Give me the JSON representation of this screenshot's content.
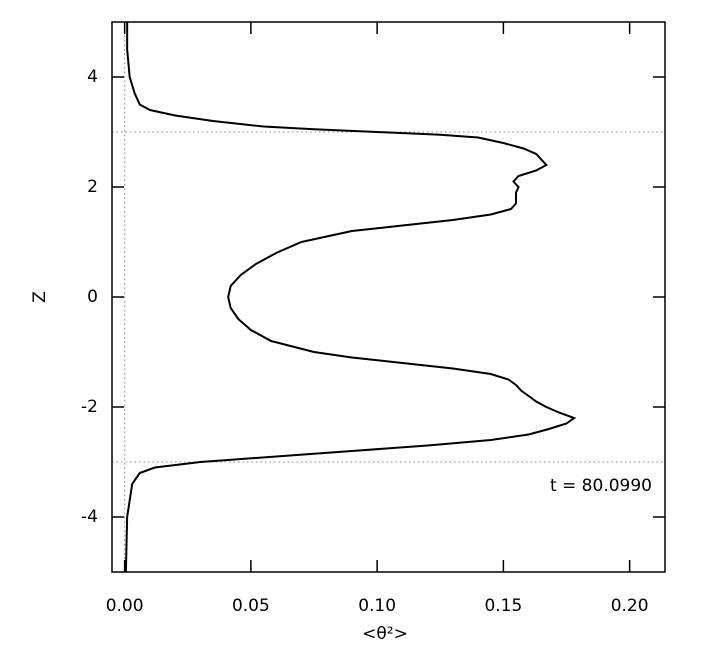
{
  "chart_data": {
    "type": "line",
    "xlabel": "<θ²>",
    "ylabel": "Z",
    "annotation": "t = 80.0990",
    "xlim": [
      -0.005,
      0.214
    ],
    "ylim": [
      -5,
      5
    ],
    "xticks": [
      {
        "value": 0,
        "label": "0.00"
      },
      {
        "value": 0.05,
        "label": "0.05"
      },
      {
        "value": 0.1,
        "label": "0.10"
      },
      {
        "value": 0.15,
        "label": "0.15"
      },
      {
        "value": 0.2,
        "label": "0.20"
      }
    ],
    "yticks": [
      -4,
      -2,
      0,
      2,
      4
    ],
    "hlines": [
      3,
      -3
    ],
    "vlines": [
      0
    ],
    "color": "#000000",
    "z": [
      5,
      4.5,
      4,
      3.7,
      3.5,
      3.4,
      3.3,
      3.2,
      3.1,
      3.05,
      3.0,
      2.95,
      2.9,
      2.8,
      2.7,
      2.6,
      2.5,
      2.4,
      2.3,
      2.2,
      2.1,
      2.0,
      1.9,
      1.8,
      1.7,
      1.6,
      1.5,
      1.4,
      1.3,
      1.2,
      1.0,
      0.8,
      0.6,
      0.4,
      0.2,
      0,
      -0.2,
      -0.4,
      -0.6,
      -0.8,
      -1.0,
      -1.1,
      -1.2,
      -1.3,
      -1.4,
      -1.5,
      -1.6,
      -1.7,
      -1.8,
      -1.9,
      -2.0,
      -2.1,
      -2.2,
      -2.3,
      -2.4,
      -2.5,
      -2.6,
      -2.7,
      -2.8,
      -2.9,
      -3.0,
      -3.1,
      -3.2,
      -3.4,
      -4,
      -5
    ],
    "values": [
      0.001,
      0.001,
      0.002,
      0.004,
      0.006,
      0.01,
      0.02,
      0.035,
      0.055,
      0.075,
      0.1,
      0.125,
      0.14,
      0.15,
      0.158,
      0.163,
      0.165,
      0.167,
      0.163,
      0.156,
      0.154,
      0.156,
      0.155,
      0.155,
      0.155,
      0.153,
      0.145,
      0.13,
      0.11,
      0.09,
      0.07,
      0.06,
      0.052,
      0.046,
      0.042,
      0.041,
      0.042,
      0.045,
      0.05,
      0.058,
      0.075,
      0.09,
      0.11,
      0.13,
      0.145,
      0.152,
      0.155,
      0.157,
      0.16,
      0.163,
      0.167,
      0.172,
      0.178,
      0.175,
      0.168,
      0.16,
      0.145,
      0.12,
      0.09,
      0.06,
      0.03,
      0.012,
      0.006,
      0.003,
      0.001,
      0.0005
    ]
  }
}
